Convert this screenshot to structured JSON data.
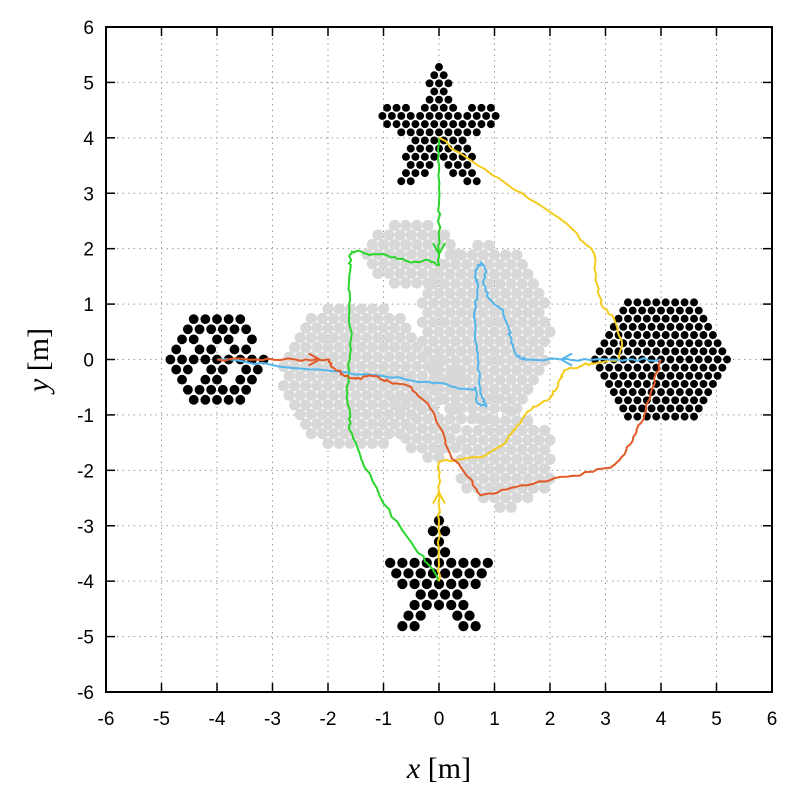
{
  "chart_data": {
    "type": "scatter",
    "xlabel_var": "x",
    "xlabel_unit": "[m]",
    "ylabel_var": "y",
    "ylabel_unit": "[m]",
    "xlim": [
      -6,
      6
    ],
    "ylim": [
      -6,
      6
    ],
    "xticks": [
      -6,
      -5,
      -4,
      -3,
      -2,
      -1,
      0,
      1,
      2,
      3,
      4,
      5,
      6
    ],
    "yticks": [
      -6,
      -5,
      -4,
      -3,
      -2,
      -1,
      0,
      1,
      2,
      3,
      4,
      5,
      6
    ],
    "grid": true,
    "colors": {
      "formation": "#000000",
      "intermediate": "#d8d8d8",
      "green": "#2bd62b",
      "yellow": "#f5cc1e",
      "blue": "#54b6ea",
      "red": "#e15a28"
    },
    "formations": [
      {
        "name": "hexagon-left",
        "shape": "hexagon",
        "center": [
          -4,
          0
        ],
        "spacing": 0.21,
        "rings": 4,
        "pattern": "sparse"
      },
      {
        "name": "hexagon-right",
        "shape": "hexagon",
        "center": [
          4,
          0
        ],
        "spacing": 0.17,
        "rings": 7,
        "pattern": "dense"
      },
      {
        "name": "star-top",
        "shape": "star",
        "center": [
          0,
          4.1
        ],
        "spacing": 0.17,
        "outer_radius": 1.25,
        "inner_radius": 0.55
      },
      {
        "name": "star-bottom",
        "shape": "star",
        "center": [
          0,
          -4.05
        ],
        "spacing": 0.22,
        "outer_radius": 1.2,
        "inner_radius": 0.45
      }
    ],
    "series": [
      {
        "color": "green",
        "arrows": [
          [
            0,
            2.2,
            0,
            1.9
          ]
        ],
        "points": [
          [
            0,
            4
          ],
          [
            0,
            3.4
          ],
          [
            0,
            2.8
          ],
          [
            0,
            2.2
          ],
          [
            0,
            1.7
          ],
          [
            -0.2,
            1.8
          ],
          [
            -0.5,
            1.75
          ],
          [
            -0.8,
            1.85
          ],
          [
            -1.2,
            1.9
          ],
          [
            -1.5,
            1.95
          ],
          [
            -1.6,
            1.9
          ],
          [
            -1.6,
            1.6
          ],
          [
            -1.62,
            1.0
          ],
          [
            -1.58,
            0.4
          ],
          [
            -1.62,
            -0.2
          ],
          [
            -1.65,
            -0.6
          ],
          [
            -1.6,
            -1.0
          ],
          [
            -1.62,
            -1.25
          ],
          [
            -1.4,
            -1.8
          ],
          [
            -1.0,
            -2.6
          ],
          [
            -0.5,
            -3.3
          ],
          [
            -0.1,
            -3.8
          ],
          [
            0,
            -4
          ]
        ]
      },
      {
        "color": "yellow",
        "arrows": [
          [
            0,
            -2.75,
            0,
            -2.4
          ]
        ],
        "points": [
          [
            0,
            -4
          ],
          [
            0,
            -3.4
          ],
          [
            0,
            -2.9
          ],
          [
            0,
            -2.4
          ],
          [
            0,
            -1.85
          ],
          [
            0.4,
            -1.8
          ],
          [
            0.8,
            -1.75
          ],
          [
            1.2,
            -1.5
          ],
          [
            1.4,
            -1.2
          ],
          [
            1.7,
            -0.85
          ],
          [
            2.0,
            -0.7
          ],
          [
            2.15,
            -0.45
          ],
          [
            2.25,
            -0.2
          ],
          [
            2.6,
            -0.1
          ],
          [
            2.9,
            -0.05
          ],
          [
            3.25,
            0.0
          ],
          [
            3.3,
            0.25
          ],
          [
            3.15,
            0.75
          ],
          [
            2.95,
            0.95
          ],
          [
            2.85,
            1.35
          ],
          [
            2.8,
            1.9
          ],
          [
            2.3,
            2.45
          ],
          [
            1.5,
            3.0
          ],
          [
            0.7,
            3.5
          ],
          [
            0,
            4
          ]
        ]
      },
      {
        "color": "blue",
        "arrows": [
          [
            2.45,
            0,
            2.2,
            0
          ]
        ],
        "points": [
          [
            4,
            0
          ],
          [
            3.4,
            0
          ],
          [
            2.8,
            0
          ],
          [
            2.2,
            0
          ],
          [
            1.6,
            0
          ],
          [
            1.4,
            0.05
          ],
          [
            1.3,
            0.3
          ],
          [
            1.25,
            0.6
          ],
          [
            1.15,
            0.9
          ],
          [
            0.9,
            1.1
          ],
          [
            0.8,
            1.35
          ],
          [
            0.85,
            1.6
          ],
          [
            0.75,
            1.75
          ],
          [
            0.65,
            1.6
          ],
          [
            0.7,
            1.3
          ],
          [
            0.65,
            0.9
          ],
          [
            0.65,
            0.5
          ],
          [
            0.7,
            0.1
          ],
          [
            0.72,
            -0.4
          ],
          [
            0.78,
            -0.7
          ],
          [
            0.85,
            -0.85
          ],
          [
            0.7,
            -0.8
          ],
          [
            0.65,
            -0.5
          ],
          [
            0.6,
            -0.55
          ],
          [
            0.3,
            -0.5
          ],
          [
            -0.2,
            -0.4
          ],
          [
            -1.0,
            -0.3
          ],
          [
            -2.0,
            -0.2
          ],
          [
            -3.0,
            -0.1
          ],
          [
            -4,
            0
          ]
        ]
      },
      {
        "color": "red",
        "arrows": [
          [
            -2.4,
            0,
            -2.15,
            0
          ]
        ],
        "points": [
          [
            -4,
            0
          ],
          [
            -3.3,
            0
          ],
          [
            -2.6,
            0
          ],
          [
            -2.0,
            0
          ],
          [
            -1.9,
            -0.15
          ],
          [
            -1.7,
            -0.3
          ],
          [
            -1.5,
            -0.35
          ],
          [
            -1.2,
            -0.3
          ],
          [
            -0.9,
            -0.4
          ],
          [
            -0.5,
            -0.5
          ],
          [
            -0.2,
            -0.8
          ],
          [
            0.0,
            -1.2
          ],
          [
            0.2,
            -1.7
          ],
          [
            0.5,
            -2.1
          ],
          [
            0.75,
            -2.45
          ],
          [
            1.2,
            -2.35
          ],
          [
            1.8,
            -2.2
          ],
          [
            2.4,
            -2.1
          ],
          [
            3.1,
            -1.95
          ],
          [
            3.3,
            -1.75
          ],
          [
            3.5,
            -1.4
          ],
          [
            3.7,
            -1.0
          ],
          [
            3.85,
            -0.5
          ],
          [
            4,
            0
          ]
        ]
      }
    ]
  }
}
